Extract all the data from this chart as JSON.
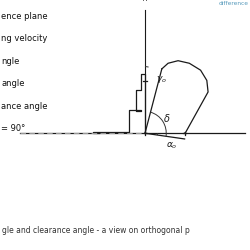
{
  "bg_color": "#ffffff",
  "legend_texts": [
    "ence plane",
    "ng velocity",
    "ngle",
    "angle",
    "ance angle",
    "= 90°"
  ],
  "pi_R_label": "π_R",
  "gamma_label": "γ_o",
  "delta_label": "δ",
  "alpha_label": "α_o",
  "diff_text": "difference",
  "caption": "gle and clearance angle - a view on orthogonal p",
  "line_color": "#1a1a1a",
  "dashed_color": "#999999",
  "angle_arc_color": "#333333",
  "caption_bg": "#d0d0d0",
  "diff_color": "#5599bb",
  "gamma_deg": 15,
  "alpha_deg": 8
}
